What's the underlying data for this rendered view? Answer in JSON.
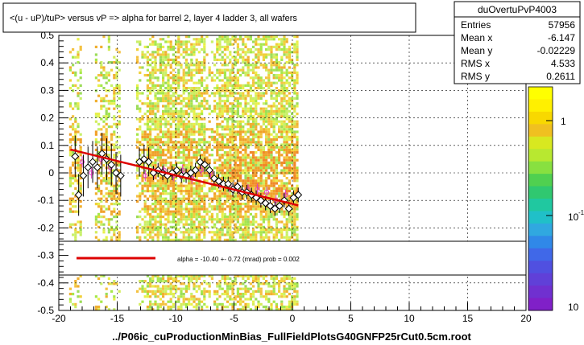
{
  "title": "<(u - uP)/tuP> versus   vP => alpha for barrel 2, layer 4 ladder 3, all wafers",
  "footer": "../P06ic_cuProductionMinBias_FullFieldPlotsG40GNFP25rCut0.5cm.root",
  "stats": {
    "name": "duOvertuPvP4003",
    "rows": [
      {
        "label": "Entries",
        "value": "57956"
      },
      {
        "label": "Mean x",
        "value": "-6.147"
      },
      {
        "label": "Mean y",
        "value": "-0.02229"
      },
      {
        "label": "RMS x",
        "value": "4.533"
      },
      {
        "label": "RMS y",
        "value": "0.2611"
      }
    ]
  },
  "fit_legend": "alpha =  -10.40 +-  0.72 (mrad) prob = 0.002",
  "colorbar": {
    "labels": [
      "1",
      "10",
      "10"
    ],
    "exponent": "-1"
  },
  "chart_data": {
    "type": "scatter",
    "xlim": [
      -20,
      20
    ],
    "ylim": [
      -0.5,
      0.5
    ],
    "x_ticks": [
      "-20",
      "-15",
      "-10",
      "-5",
      "0",
      "5",
      "10",
      "15",
      "20"
    ],
    "y_ticks": [
      "-0.5",
      "-0.4",
      "-0.3",
      "-0.2",
      "-0.1",
      "0",
      "0.1",
      "0.2",
      "0.3",
      "0.4",
      "0.5"
    ],
    "fit_line": {
      "x": [
        -19,
        0.5
      ],
      "y": [
        0.085,
        -0.118
      ],
      "color": "#dd0000"
    },
    "profile_black": [
      {
        "x": -18.6,
        "y": 0.06
      },
      {
        "x": -18.3,
        "y": -0.08
      },
      {
        "x": -17.9,
        "y": -0.01
      },
      {
        "x": -17.5,
        "y": 0.02
      },
      {
        "x": -17.1,
        "y": 0.04
      },
      {
        "x": -16.7,
        "y": 0.02
      },
      {
        "x": -16.3,
        "y": 0.07
      },
      {
        "x": -15.9,
        "y": 0.05
      },
      {
        "x": -15.5,
        "y": 0.03
      },
      {
        "x": -15.1,
        "y": 0.0
      },
      {
        "x": -14.7,
        "y": -0.01
      },
      {
        "x": -13.1,
        "y": 0.04
      },
      {
        "x": -12.7,
        "y": 0.05
      },
      {
        "x": -12.3,
        "y": 0.04
      },
      {
        "x": -11.9,
        "y": 0.0
      },
      {
        "x": -11.5,
        "y": 0.01
      },
      {
        "x": -11.1,
        "y": 0.0
      },
      {
        "x": -10.7,
        "y": -0.01
      },
      {
        "x": -10.3,
        "y": 0.0
      },
      {
        "x": -9.9,
        "y": 0.01
      },
      {
        "x": -9.5,
        "y": -0.01
      },
      {
        "x": -9.1,
        "y": -0.01
      },
      {
        "x": -8.7,
        "y": 0.0
      },
      {
        "x": -8.3,
        "y": 0.01
      },
      {
        "x": -7.9,
        "y": 0.04
      },
      {
        "x": -7.5,
        "y": 0.03
      },
      {
        "x": -7.1,
        "y": 0.01
      },
      {
        "x": -6.7,
        "y": -0.02
      },
      {
        "x": -6.3,
        "y": -0.03
      },
      {
        "x": -5.9,
        "y": -0.04
      },
      {
        "x": -5.5,
        "y": -0.04
      },
      {
        "x": -5.1,
        "y": -0.06
      },
      {
        "x": -4.7,
        "y": -0.05
      },
      {
        "x": -4.3,
        "y": -0.07
      },
      {
        "x": -3.9,
        "y": -0.07
      },
      {
        "x": -3.5,
        "y": -0.08
      },
      {
        "x": -3.1,
        "y": -0.09
      },
      {
        "x": -2.7,
        "y": -0.1
      },
      {
        "x": -2.3,
        "y": -0.11
      },
      {
        "x": -1.9,
        "y": -0.12
      },
      {
        "x": -1.5,
        "y": -0.13
      },
      {
        "x": -1.1,
        "y": -0.12
      },
      {
        "x": -0.7,
        "y": -0.1
      },
      {
        "x": -0.3,
        "y": -0.13
      },
      {
        "x": 0.1,
        "y": -0.09
      },
      {
        "x": 0.5,
        "y": -0.08
      }
    ],
    "profile_pink": [
      {
        "x": -18.0,
        "y": 0.04
      },
      {
        "x": -17.2,
        "y": 0.0
      },
      {
        "x": -16.4,
        "y": 0.05
      },
      {
        "x": -15.6,
        "y": 0.02
      },
      {
        "x": -12.6,
        "y": -0.01
      },
      {
        "x": -11.8,
        "y": 0.0
      },
      {
        "x": -11.0,
        "y": 0.01
      },
      {
        "x": -10.2,
        "y": -0.01
      },
      {
        "x": -9.4,
        "y": 0.01
      },
      {
        "x": -8.6,
        "y": -0.02
      },
      {
        "x": -7.8,
        "y": 0.01
      },
      {
        "x": -7.0,
        "y": 0.0
      },
      {
        "x": -6.2,
        "y": -0.04
      },
      {
        "x": -5.4,
        "y": -0.05
      },
      {
        "x": -4.6,
        "y": -0.06
      },
      {
        "x": -3.8,
        "y": -0.06
      },
      {
        "x": -3.0,
        "y": -0.06
      },
      {
        "x": -2.2,
        "y": -0.07
      },
      {
        "x": -1.4,
        "y": -0.1
      },
      {
        "x": -0.6,
        "y": -0.08
      }
    ]
  }
}
